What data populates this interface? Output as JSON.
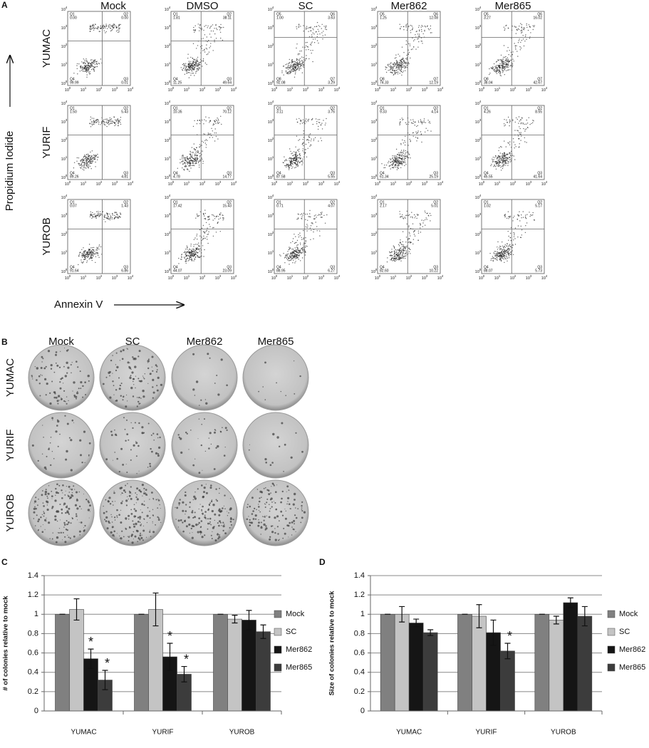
{
  "panel_a": {
    "label": "A",
    "columns": [
      "Mock",
      "DMSO",
      "SC",
      "Mer862",
      "Mer865"
    ],
    "rows": [
      "YUMAC",
      "YURIF",
      "YUROB"
    ],
    "y_axis_label": "Propidium Iodide",
    "x_axis_label": "Annexin V",
    "ticks": [
      {
        "base": "10",
        "exp": "0"
      },
      {
        "base": "10",
        "exp": "1"
      },
      {
        "base": "10",
        "exp": "2"
      },
      {
        "base": "10",
        "exp": "3"
      },
      {
        "base": "10",
        "exp": "4"
      }
    ],
    "plots": [
      [
        {
          "q_labels": [
            "Q1",
            "Q2",
            "Q4",
            "Q3"
          ],
          "q_values": [
            "0.00",
            "0.00",
            "99.99",
            "0.01"
          ]
        },
        {
          "q_labels": [
            "Q1",
            "Q2",
            "Q4",
            "Q3"
          ],
          "q_values": [
            "1.81",
            "38.11",
            "11.25",
            "49.64"
          ]
        },
        {
          "q_labels": [
            "Q5",
            "Q6",
            "Q8",
            "Q7"
          ],
          "q_values": [
            "1.00",
            "3.63",
            "92.08",
            "3.29"
          ]
        },
        {
          "q_labels": [
            "Q5",
            "Q6",
            "Q8",
            "Q7"
          ],
          "q_values": [
            "1.25",
            "12.08",
            "74.33",
            "12.19"
          ]
        },
        {
          "q_labels": [
            "Q5",
            "Q6",
            "Q8",
            "Q7"
          ],
          "q_values": [
            "3.27",
            "16.02",
            "38.04",
            "42.67"
          ]
        }
      ],
      [
        {
          "q_labels": [
            "Q1",
            "Q2",
            "Q4",
            "Q3"
          ],
          "q_values": [
            "1.50",
            "5.43",
            "89.26",
            "4.81"
          ]
        },
        {
          "q_labels": [
            "Q1",
            "Q2",
            "Q4",
            "Q3"
          ],
          "q_values": [
            "10.35",
            "70.12",
            "4.78",
            "14.77"
          ]
        },
        {
          "q_labels": [
            "Q1",
            "Q2",
            "Q4",
            "Q3"
          ],
          "q_values": [
            "3.11",
            "3.76",
            "87.58",
            "5.55"
          ]
        },
        {
          "q_labels": [
            "Q1",
            "Q2",
            "Q4",
            "Q3"
          ],
          "q_values": [
            "9.33",
            "4.14",
            "61.34",
            "25.19"
          ]
        },
        {
          "q_labels": [
            "Q1",
            "Q2",
            "Q4",
            "Q3"
          ],
          "q_values": [
            "4.26",
            "8.55",
            "45.55",
            "41.64"
          ]
        }
      ],
      [
        {
          "q_labels": [
            "Q1",
            "Q2",
            "Q4",
            "Q3"
          ],
          "q_values": [
            "0.07",
            "1.43",
            "91.64",
            "6.86"
          ]
        },
        {
          "q_labels": [
            "Q1",
            "Q2",
            "Q4",
            "Q3"
          ],
          "q_values": [
            "17.42",
            "15.43",
            "44.07",
            "23.09"
          ]
        },
        {
          "q_labels": [
            "Q1",
            "Q2",
            "Q4",
            "Q3"
          ],
          "q_values": [
            "0.71",
            "4.07",
            "88.95",
            "6.27"
          ]
        },
        {
          "q_labels": [
            "Q1",
            "Q2",
            "Q4",
            "Q3"
          ],
          "q_values": [
            "2.17",
            "5.01",
            "82.60",
            "10.22"
          ]
        },
        {
          "q_labels": [
            "Q1",
            "Q2",
            "Q4",
            "Q3"
          ],
          "q_values": [
            "1.02",
            "5.17",
            "88.07",
            "5.73"
          ]
        }
      ]
    ]
  },
  "panel_b": {
    "label": "B",
    "columns": [
      "Mock",
      "SC",
      "Mer862",
      "Mer865"
    ],
    "rows": [
      "YUMAC",
      "YURIF",
      "YUROB"
    ]
  },
  "chart_data": [
    {
      "type": "bar",
      "panel_label": "C",
      "y_axis_label": "# of colonies relative to mock",
      "categories": [
        "YUMAC",
        "YURIF",
        "YUROB"
      ],
      "ylim": [
        0,
        1.4
      ],
      "yticks": [
        0,
        0.2,
        0.4,
        0.6,
        0.8,
        1,
        1.2,
        1.4
      ],
      "grid": true,
      "legend": "right",
      "series": [
        {
          "name": "Mock",
          "color": "#808080",
          "values": [
            1,
            1,
            1
          ],
          "errors": [
            0,
            0,
            0
          ]
        },
        {
          "name": "SC",
          "color": "#c4c4c4",
          "values": [
            1.05,
            1.05,
            0.95
          ],
          "errors": [
            0.11,
            0.17,
            0.04
          ]
        },
        {
          "name": "Mer862",
          "color": "#151515",
          "values": [
            0.54,
            0.56,
            0.94
          ],
          "errors": [
            0.1,
            0.14,
            0.1
          ],
          "annotations": [
            "*",
            "*",
            null
          ]
        },
        {
          "name": "Mer865",
          "color": "#3c3c3c",
          "values": [
            0.32,
            0.38,
            0.82
          ],
          "errors": [
            0.1,
            0.08,
            0.07
          ],
          "annotations": [
            "*",
            "*",
            null
          ]
        }
      ]
    },
    {
      "type": "bar",
      "panel_label": "D",
      "y_axis_label": "Size of colonies relative to mock",
      "categories": [
        "YUMAC",
        "YURIF",
        "YUROB"
      ],
      "ylim": [
        0,
        1.4
      ],
      "yticks": [
        0,
        0.2,
        0.4,
        0.6,
        0.8,
        1,
        1.2,
        1.4
      ],
      "grid": true,
      "legend": "right",
      "series": [
        {
          "name": "Mock",
          "color": "#808080",
          "values": [
            1,
            1,
            1
          ],
          "errors": [
            0,
            0,
            0
          ]
        },
        {
          "name": "SC",
          "color": "#c4c4c4",
          "values": [
            1,
            0.98,
            0.94
          ],
          "errors": [
            0.08,
            0.12,
            0.04
          ]
        },
        {
          "name": "Mer862",
          "color": "#151515",
          "values": [
            0.91,
            0.81,
            1.12
          ],
          "errors": [
            0.04,
            0.13,
            0.05
          ]
        },
        {
          "name": "Mer865",
          "color": "#3c3c3c",
          "values": [
            0.81,
            0.62,
            0.98
          ],
          "errors": [
            0.03,
            0.08,
            0.1
          ],
          "annotations": [
            null,
            "*",
            null
          ]
        }
      ]
    }
  ]
}
